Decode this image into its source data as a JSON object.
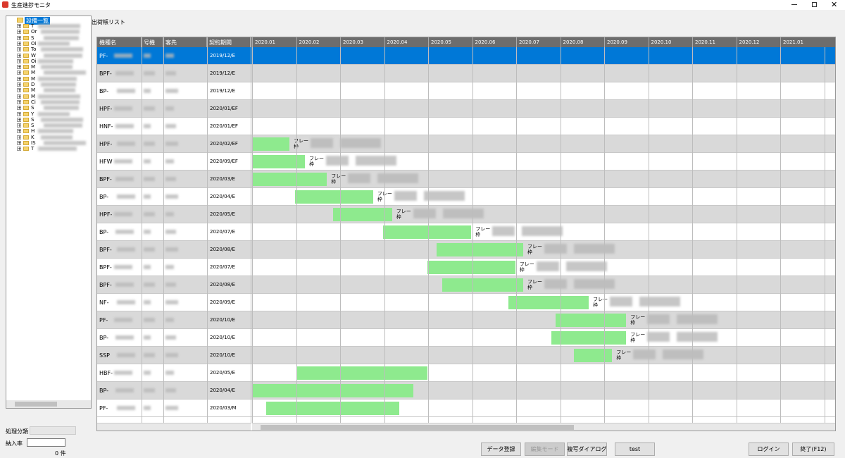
{
  "window": {
    "title": "生産進捗モニタ"
  },
  "tree": {
    "root": "設備一覧",
    "items": [
      "T",
      "Or",
      "S",
      "Oi",
      "To",
      "W",
      "Oi",
      "M",
      "M",
      "M",
      "D",
      "M",
      "M",
      "Ci",
      "S",
      "Y",
      "S",
      "S",
      "H",
      "K",
      "IS",
      "T"
    ]
  },
  "list": {
    "title": "出荷帳リスト",
    "columns": [
      "機種名",
      "号機",
      "客先",
      "契約期間"
    ],
    "months": [
      "2020.01",
      "2020.02",
      "2020.03",
      "2020.04",
      "2020.05",
      "2020.06",
      "2020.07",
      "2020.08",
      "2020.09",
      "2020.10",
      "2020.11",
      "2020.12",
      "2021.01"
    ],
    "rows": [
      {
        "model": "PF-",
        "contract": "2019/12/E"
      },
      {
        "model": "BPF-",
        "contract": "2019/12/E"
      },
      {
        "model": "BP-",
        "contract": "2019/12/E"
      },
      {
        "model": "HPF-",
        "contract": "2020/01/EF"
      },
      {
        "model": "HNF-",
        "contract": "2020/01/EF"
      },
      {
        "model": "HPF-",
        "contract": "2020/02/EF",
        "span": [
          0,
          0.85
        ],
        "tag": "フレー",
        "sub": "枠"
      },
      {
        "model": "HFW",
        "contract": "2020/09/EF",
        "span": [
          0,
          1.2
        ],
        "tag": "フレー",
        "sub": "枠"
      },
      {
        "model": "BPF-",
        "contract": "2020/03/E",
        "span": [
          0,
          1.7
        ],
        "tag": "フレー",
        "sub": "枠"
      },
      {
        "model": "BP-",
        "contract": "2020/04/E",
        "span": [
          0.98,
          2.75
        ],
        "tag": "フレー",
        "sub": "枠"
      },
      {
        "model": "HPF-",
        "contract": "2020/05/E",
        "span": [
          1.84,
          3.18
        ],
        "tag": "フレー",
        "sub": "枠"
      },
      {
        "model": "BP-",
        "contract": "2020/07/E",
        "span": [
          2.98,
          4.98
        ],
        "tag": "フレー",
        "sub": "枠"
      },
      {
        "model": "BPF-",
        "contract": "2020/08/E",
        "span": [
          4.19,
          6.16
        ],
        "tag": "フレー",
        "sub": "枠"
      },
      {
        "model": "BPF-",
        "contract": "2020/07/E",
        "span": [
          3.98,
          5.98
        ],
        "tag": "フレー",
        "sub": "枠"
      },
      {
        "model": "BPF-",
        "contract": "2020/08/E",
        "span": [
          4.32,
          6.16
        ],
        "tag": "フレー",
        "sub": "枠"
      },
      {
        "model": "NF-",
        "contract": "2020/09/E",
        "span": [
          5.82,
          7.65
        ],
        "tag": "フレー",
        "sub": "枠"
      },
      {
        "model": "PF-",
        "contract": "2020/10/E",
        "span": [
          6.9,
          8.5
        ],
        "tag": "フレー",
        "sub": "枠"
      },
      {
        "model": "BP-",
        "contract": "2020/10/E",
        "span": [
          6.8,
          8.5
        ],
        "tag": "フレー",
        "sub": "枠"
      },
      {
        "model": "SSP",
        "contract": "2020/10/E",
        "span": [
          7.31,
          8.18
        ],
        "tag": "フレー",
        "sub": "枠"
      },
      {
        "model": "HBF-",
        "contract": "2020/05/E",
        "span": [
          1.02,
          3.98
        ]
      },
      {
        "model": "BP-",
        "contract": "2020/04/E",
        "span": [
          0,
          3.66
        ]
      },
      {
        "model": "PF-",
        "contract": "2020/03/M",
        "span": [
          0.32,
          3.34
        ]
      }
    ]
  },
  "footer": {
    "category_label": "処理分類",
    "rate_label": "納入率",
    "count": "0 件",
    "buttons": [
      "データ登録",
      "編集モード",
      "複写ダイアログ",
      "test",
      "ログイン",
      "終了(F12)"
    ]
  }
}
